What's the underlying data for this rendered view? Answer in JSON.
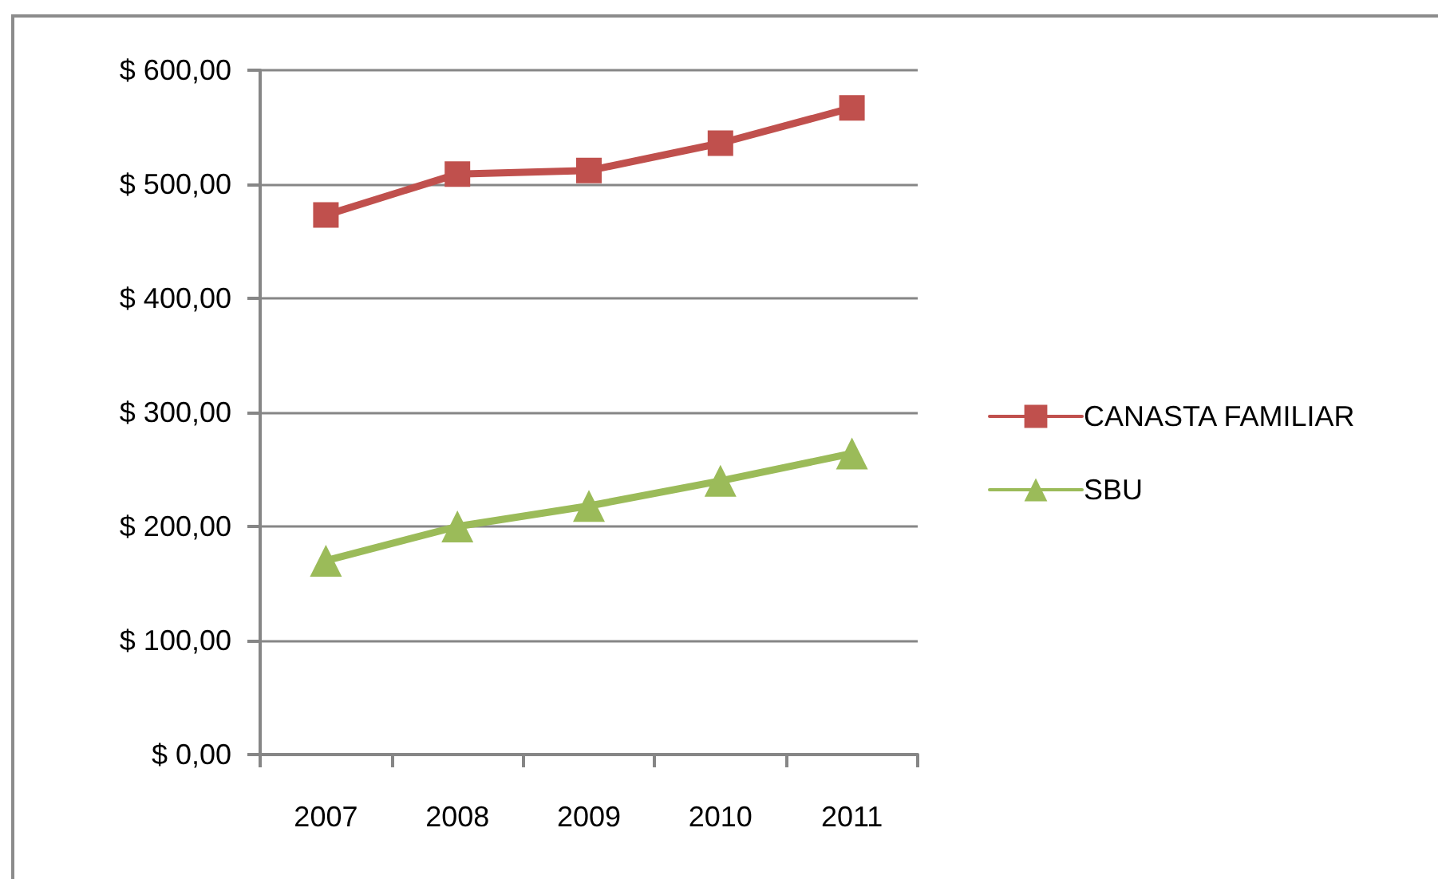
{
  "chart_data": {
    "type": "line",
    "categories": [
      "2007",
      "2008",
      "2009",
      "2010",
      "2011"
    ],
    "series": [
      {
        "name": "CANASTA FAMILIAR",
        "color": "#c0504d",
        "marker": "square",
        "values": [
          473,
          509,
          512,
          536,
          567
        ]
      },
      {
        "name": "SBU",
        "color": "#9bbb59",
        "marker": "triangle",
        "values": [
          170,
          200,
          218,
          240,
          264
        ]
      }
    ],
    "ylim": [
      0,
      600
    ],
    "yticks": [
      {
        "value": 0,
        "label": "$ 0,00"
      },
      {
        "value": 100,
        "label": "$ 100,00"
      },
      {
        "value": 200,
        "label": "$ 200,00"
      },
      {
        "value": 300,
        "label": "$ 300,00"
      },
      {
        "value": 400,
        "label": "$ 400,00"
      },
      {
        "value": 500,
        "label": "$ 500,00"
      },
      {
        "value": 600,
        "label": "$ 600,00"
      }
    ],
    "grid": "y",
    "legend": "right",
    "line_style": "solid"
  }
}
